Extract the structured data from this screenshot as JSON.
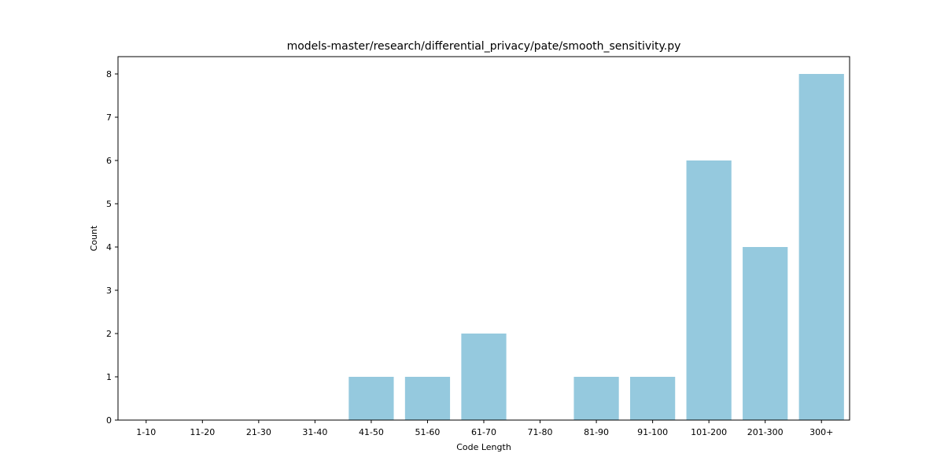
{
  "chart_data": {
    "type": "bar",
    "title": "models-master/research/differential_privacy/pate/smooth_sensitivity.py",
    "xlabel": "Code Length",
    "ylabel": "Count",
    "categories": [
      "1-10",
      "11-20",
      "21-30",
      "31-40",
      "41-50",
      "51-60",
      "61-70",
      "71-80",
      "81-90",
      "91-100",
      "101-200",
      "201-300",
      "300+"
    ],
    "values": [
      0,
      0,
      0,
      0,
      1,
      1,
      2,
      0,
      1,
      1,
      6,
      4,
      8
    ],
    "ylim": [
      0,
      8.4
    ],
    "yticks": [
      "0",
      "1",
      "2",
      "3",
      "4",
      "5",
      "6",
      "7",
      "8"
    ],
    "bar_color": "#95c9de",
    "grid": false,
    "legend": "none"
  }
}
